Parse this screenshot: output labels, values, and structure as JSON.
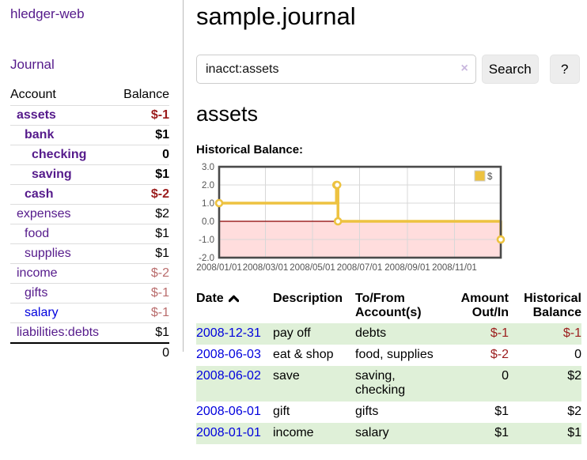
{
  "app": {
    "title": "hledger-web"
  },
  "sidebar": {
    "journal_link": "Journal",
    "accounts_table": {
      "account_header": "Account",
      "balance_header": "Balance",
      "rows": [
        {
          "name": "assets",
          "balance": "$-1"
        },
        {
          "name": "bank",
          "balance": "$1"
        },
        {
          "name": "checking",
          "balance": "0"
        },
        {
          "name": "saving",
          "balance": "$1"
        },
        {
          "name": "cash",
          "balance": "$-2"
        },
        {
          "name": "expenses",
          "balance": "$2"
        },
        {
          "name": "food",
          "balance": "$1"
        },
        {
          "name": "supplies",
          "balance": "$1"
        },
        {
          "name": "income",
          "balance": "$-2"
        },
        {
          "name": "gifts",
          "balance": "$-1"
        },
        {
          "name": "salary",
          "balance": "$-1"
        },
        {
          "name": "liabilities:debts",
          "balance": "$1"
        }
      ],
      "total": "0"
    }
  },
  "main": {
    "title": "sample.journal",
    "search": {
      "value": "inacct:assets",
      "clear_label": "×",
      "button_label": "Search",
      "help_label": "?"
    },
    "account_heading": "assets",
    "section_label": "Historical Balance:"
  },
  "chart_data": {
    "type": "line",
    "title": "Historical Balance:",
    "step": true,
    "x_range": [
      "2008/01/01",
      "2008/12/31"
    ],
    "ylim": [
      -2,
      3
    ],
    "y_ticks": [
      3.0,
      2.0,
      1.0,
      0.0,
      -1.0,
      -2.0
    ],
    "x_ticks": [
      "2008/01/01",
      "2008/03/01",
      "2008/05/01",
      "2008/07/01",
      "2008/09/01",
      "2008/11/01"
    ],
    "series": [
      {
        "name": "$",
        "color": "#edc240",
        "points": [
          [
            "2008/01/01",
            1
          ],
          [
            "2008/06/01",
            2
          ],
          [
            "2008/06/02",
            2
          ],
          [
            "2008/06/03",
            0
          ],
          [
            "2008/12/31",
            -1
          ]
        ]
      }
    ],
    "legend_position": "top-right",
    "grid": true,
    "grid_color": "#d8d8d8",
    "border_color": "#4a4a4a",
    "negative_region_color": "#ffdddd",
    "zero_line_color": "#8b0000"
  },
  "register": {
    "columns": {
      "date": "Date",
      "description": "Description",
      "tofrom_line1": "To/From",
      "tofrom_line2": "Account(s)",
      "amount_line1": "Amount",
      "amount_line2": "Out/In",
      "balance_line1": "Historical",
      "balance_line2": "Balance"
    },
    "sort_icon_name": "chevron-up",
    "rows": [
      {
        "date": "2008-12-31",
        "description": "pay off",
        "accounts": "debts",
        "amount": "$-1",
        "balance": "$-1"
      },
      {
        "date": "2008-06-03",
        "description": "eat & shop",
        "accounts": "food, supplies",
        "amount": "$-2",
        "balance": "0"
      },
      {
        "date": "2008-06-02",
        "description": "save",
        "accounts": "saving, checking",
        "amount": "0",
        "balance": "$2"
      },
      {
        "date": "2008-06-01",
        "description": "gift",
        "accounts": "gifts",
        "amount": "$1",
        "balance": "$2"
      },
      {
        "date": "2008-01-01",
        "description": "income",
        "accounts": "salary",
        "amount": "$1",
        "balance": "$1"
      }
    ]
  },
  "colors": {
    "link_purple": "#551a8b",
    "link_blue": "#0000dd",
    "negative_strong": "#9b1c1c",
    "negative_soft": "#b96c6c",
    "row_highlight_green": "#dff0d8",
    "series_gold": "#edc240"
  }
}
